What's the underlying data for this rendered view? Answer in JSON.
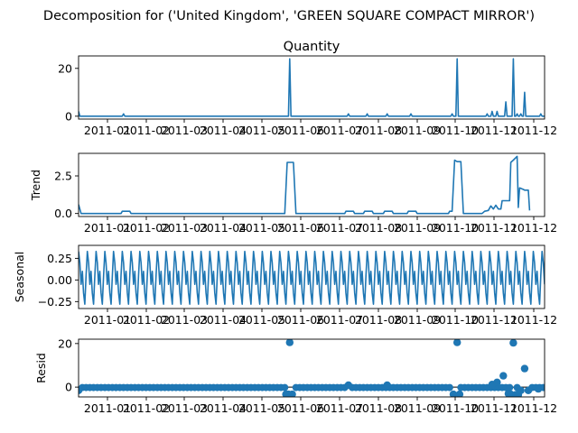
{
  "figure": {
    "suptitle": "Decomposition for ('United Kingdom', 'GREEN SQUARE COMPACT MIRROR')"
  },
  "chart_data": {
    "type": "line",
    "x_tick_labels": [
      "2011-01",
      "2011-02",
      "2011-03",
      "2011-04",
      "2011-05",
      "2011-06",
      "2011-07",
      "2011-08",
      "2011-09",
      "2011-10",
      "2011-11",
      "2011-12"
    ],
    "x_range": [
      "2010-12-01",
      "2011-12-09"
    ],
    "panels": [
      {
        "key": "observed",
        "type": "line",
        "title": "Quantity",
        "ylabel": "",
        "ylim": [
          -1.2,
          25.2
        ],
        "yticks": [
          0,
          20
        ],
        "ytick_labels": [
          "0",
          "20"
        ],
        "baseline": 0,
        "spikes": [
          {
            "x": "2010-12-01",
            "y": 2
          },
          {
            "x": "2011-01-06",
            "y": 1
          },
          {
            "x": "2011-05-19",
            "y": 24
          },
          {
            "x": "2011-07-05",
            "y": 1
          },
          {
            "x": "2011-07-20",
            "y": 1
          },
          {
            "x": "2011-08-05",
            "y": 1
          },
          {
            "x": "2011-08-24",
            "y": 1
          },
          {
            "x": "2011-09-26",
            "y": 1
          },
          {
            "x": "2011-09-30",
            "y": 24
          },
          {
            "x": "2011-10-24",
            "y": 1
          },
          {
            "x": "2011-10-28",
            "y": 2
          },
          {
            "x": "2011-11-01",
            "y": 2
          },
          {
            "x": "2011-11-08",
            "y": 6
          },
          {
            "x": "2011-11-14",
            "y": 24
          },
          {
            "x": "2011-11-17",
            "y": 1
          },
          {
            "x": "2011-11-20",
            "y": 1
          },
          {
            "x": "2011-11-23",
            "y": 10
          },
          {
            "x": "2011-12-06",
            "y": 1
          }
        ]
      },
      {
        "key": "trend",
        "type": "line",
        "title": "",
        "ylabel": "Trend",
        "ylim": [
          -0.2,
          4.0
        ],
        "yticks": [
          0.0,
          2.5
        ],
        "ytick_labels": [
          "0.0",
          "2.5"
        ],
        "points": [
          {
            "x": "2010-12-01",
            "y": 0.6
          },
          {
            "x": "2010-12-03",
            "y": 0.0
          },
          {
            "x": "2011-01-04",
            "y": 0.0
          },
          {
            "x": "2011-01-05",
            "y": 0.15
          },
          {
            "x": "2011-01-11",
            "y": 0.15
          },
          {
            "x": "2011-01-12",
            "y": 0.0
          },
          {
            "x": "2011-05-15",
            "y": 0.0
          },
          {
            "x": "2011-05-17",
            "y": 3.4
          },
          {
            "x": "2011-05-22",
            "y": 3.4
          },
          {
            "x": "2011-05-24",
            "y": 0.0
          },
          {
            "x": "2011-07-02",
            "y": 0.0
          },
          {
            "x": "2011-07-03",
            "y": 0.15
          },
          {
            "x": "2011-07-09",
            "y": 0.15
          },
          {
            "x": "2011-07-10",
            "y": 0.0
          },
          {
            "x": "2011-07-17",
            "y": 0.0
          },
          {
            "x": "2011-07-18",
            "y": 0.15
          },
          {
            "x": "2011-07-24",
            "y": 0.15
          },
          {
            "x": "2011-07-25",
            "y": 0.0
          },
          {
            "x": "2011-08-02",
            "y": 0.0
          },
          {
            "x": "2011-08-03",
            "y": 0.15
          },
          {
            "x": "2011-08-09",
            "y": 0.15
          },
          {
            "x": "2011-08-10",
            "y": 0.0
          },
          {
            "x": "2011-08-21",
            "y": 0.0
          },
          {
            "x": "2011-08-22",
            "y": 0.15
          },
          {
            "x": "2011-08-28",
            "y": 0.15
          },
          {
            "x": "2011-08-29",
            "y": 0.0
          },
          {
            "x": "2011-09-23",
            "y": 0.0
          },
          {
            "x": "2011-09-24",
            "y": 0.15
          },
          {
            "x": "2011-09-26",
            "y": 0.15
          },
          {
            "x": "2011-09-28",
            "y": 3.55
          },
          {
            "x": "2011-09-30",
            "y": 3.45
          },
          {
            "x": "2011-10-03",
            "y": 3.45
          },
          {
            "x": "2011-10-05",
            "y": 0.0
          },
          {
            "x": "2011-10-20",
            "y": 0.0
          },
          {
            "x": "2011-10-22",
            "y": 0.15
          },
          {
            "x": "2011-10-25",
            "y": 0.2
          },
          {
            "x": "2011-10-27",
            "y": 0.5
          },
          {
            "x": "2011-10-29",
            "y": 0.3
          },
          {
            "x": "2011-10-31",
            "y": 0.55
          },
          {
            "x": "2011-11-02",
            "y": 0.3
          },
          {
            "x": "2011-11-04",
            "y": 0.3
          },
          {
            "x": "2011-11-05",
            "y": 0.85
          },
          {
            "x": "2011-11-11",
            "y": 0.85
          },
          {
            "x": "2011-11-12",
            "y": 3.4
          },
          {
            "x": "2011-11-14",
            "y": 3.55
          },
          {
            "x": "2011-11-17",
            "y": 3.8
          },
          {
            "x": "2011-11-18",
            "y": 0.4
          },
          {
            "x": "2011-11-19",
            "y": 1.7
          },
          {
            "x": "2011-11-22",
            "y": 1.6
          },
          {
            "x": "2011-11-23",
            "y": 1.55
          },
          {
            "x": "2011-11-26",
            "y": 1.55
          },
          {
            "x": "2011-11-27",
            "y": 0.2
          }
        ]
      },
      {
        "key": "seasonal",
        "type": "line",
        "title": "",
        "ylabel": "Seasonal",
        "ylim": [
          -0.33,
          0.4
        ],
        "yticks": [
          0.25,
          0.0,
          -0.25
        ],
        "ytick_labels": [
          "0.25",
          "0.00",
          "−0.25"
        ],
        "period_days": 7,
        "pattern": [
          0.33,
          0.2,
          -0.05,
          0.1,
          -0.15,
          -0.28,
          0.05
        ]
      },
      {
        "key": "resid",
        "type": "scatter",
        "title": "",
        "ylabel": "Resid",
        "ylim": [
          -4.5,
          22.0
        ],
        "yticks": [
          0,
          20
        ],
        "ytick_labels": [
          "0",
          "20"
        ],
        "default_value": -0.2,
        "outliers": [
          {
            "x": "2010-12-01",
            "y": -1.5
          },
          {
            "x": "2011-05-16",
            "y": -3.3
          },
          {
            "x": "2011-05-18",
            "y": -3.3
          },
          {
            "x": "2011-05-19",
            "y": 20.5
          },
          {
            "x": "2011-05-21",
            "y": -3.3
          },
          {
            "x": "2011-07-05",
            "y": 0.9
          },
          {
            "x": "2011-08-05",
            "y": 0.9
          },
          {
            "x": "2011-09-27",
            "y": -3.3
          },
          {
            "x": "2011-09-30",
            "y": 20.5
          },
          {
            "x": "2011-10-02",
            "y": -3.3
          },
          {
            "x": "2011-10-28",
            "y": 1.2
          },
          {
            "x": "2011-11-01",
            "y": 2.2
          },
          {
            "x": "2011-11-06",
            "y": 5.2
          },
          {
            "x": "2011-11-10",
            "y": -3.0
          },
          {
            "x": "2011-11-12",
            "y": -3.3
          },
          {
            "x": "2011-11-14",
            "y": 20.3
          },
          {
            "x": "2011-11-16",
            "y": -3.5
          },
          {
            "x": "2011-11-18",
            "y": -3.5
          },
          {
            "x": "2011-11-20",
            "y": -1.5
          },
          {
            "x": "2011-11-23",
            "y": 8.5
          },
          {
            "x": "2011-11-26",
            "y": -1.5
          },
          {
            "x": "2011-12-04",
            "y": -0.8
          }
        ]
      }
    ]
  }
}
